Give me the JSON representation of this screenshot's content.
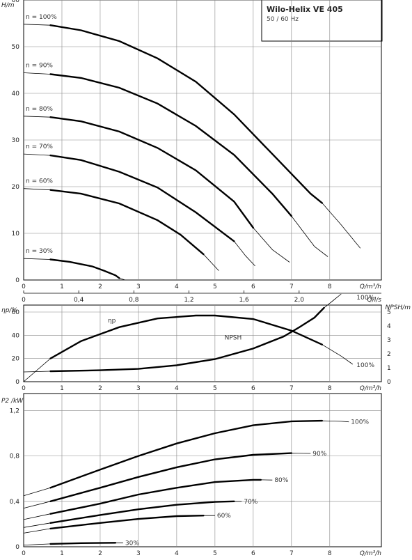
{
  "header": {
    "title": "Wilo-Helix VE 405",
    "subtitle": "50 / 60 Hz"
  },
  "chart_data": [
    {
      "type": "line",
      "panel": "head",
      "ylabel": "H/m",
      "xlabel": "Q/m³/h",
      "xlabel2": "Q/l/s",
      "x_ticks": [
        "0",
        "1",
        "2",
        "3",
        "4",
        "5",
        "6",
        "7",
        "8"
      ],
      "y_ticks": [
        "0",
        "10",
        "20",
        "30",
        "40",
        "50",
        "60"
      ],
      "x2_ticks": [
        "0",
        "0,4",
        "0,8",
        "1,2",
        "1,6",
        "2,0"
      ],
      "xlim": [
        0,
        9.35
      ],
      "ylim": [
        0,
        60
      ],
      "grid": true,
      "series": [
        {
          "name": "n = 100%",
          "x": [
            0,
            0.7,
            1.5,
            2.5,
            3.5,
            4.5,
            5.5,
            6.5,
            7.5,
            7.8,
            8.3,
            8.8
          ],
          "y": [
            54.8,
            54.6,
            53.5,
            51.2,
            47.5,
            42.5,
            35.5,
            27.0,
            18.5,
            16.5,
            11.8,
            6.8
          ]
        },
        {
          "name": "n = 90%",
          "x": [
            0,
            0.7,
            1.5,
            2.5,
            3.5,
            4.5,
            5.5,
            6.5,
            7.0,
            7.6,
            7.95
          ],
          "y": [
            44.4,
            44.1,
            43.3,
            41.2,
            37.8,
            33.0,
            26.8,
            18.5,
            13.7,
            7.2,
            5.0
          ]
        },
        {
          "name": "n = 80%",
          "x": [
            0,
            0.7,
            1.5,
            2.5,
            3.5,
            4.5,
            5.5,
            6.0,
            6.5,
            6.95
          ],
          "y": [
            35.1,
            34.9,
            34.0,
            31.8,
            28.3,
            23.5,
            16.8,
            11.2,
            6.5,
            3.8
          ]
        },
        {
          "name": "n = 70%",
          "x": [
            0,
            0.7,
            1.5,
            2.5,
            3.5,
            4.5,
            5.5,
            5.8,
            6.05
          ],
          "y": [
            27.0,
            26.7,
            25.7,
            23.2,
            19.8,
            14.5,
            8.3,
            5.2,
            3.0
          ]
        },
        {
          "name": "n = 60%",
          "x": [
            0,
            0.7,
            1.5,
            2.5,
            3.5,
            4.1,
            4.7,
            5.1
          ],
          "y": [
            19.6,
            19.3,
            18.5,
            16.4,
            12.8,
            9.7,
            5.5,
            2.0
          ]
        },
        {
          "name": "n = 30%",
          "x": [
            0,
            0.7,
            1.2,
            1.8,
            2.1,
            2.4,
            2.5,
            2.65
          ],
          "y": [
            4.6,
            4.4,
            3.9,
            2.9,
            2.0,
            1.0,
            0.4,
            0.0
          ]
        }
      ]
    },
    {
      "type": "line",
      "panel": "efficiency_npsh",
      "ylabel": "ηp/%",
      "ylabel_right": "NPSH/m",
      "xlabel": "Q/m³/h",
      "x_ticks": [
        "0",
        "1",
        "2",
        "3",
        "4",
        "5",
        "6",
        "7",
        "8"
      ],
      "y_ticks": [
        "0",
        "20",
        "40",
        "60"
      ],
      "y_right_ticks": [
        "0",
        "1",
        "2",
        "3",
        "4",
        "5"
      ],
      "xlim": [
        0,
        9.35
      ],
      "ylim": [
        0,
        66
      ],
      "ylim_right": [
        0,
        5.5
      ],
      "grid": true,
      "series": [
        {
          "name": "ηp",
          "label_100": "100%",
          "axis": "left",
          "x": [
            0,
            0.7,
            1.5,
            2.5,
            3.5,
            4.5,
            5.0,
            6.0,
            7.0,
            7.8,
            8.3,
            8.6
          ],
          "y": [
            0,
            20,
            35,
            47,
            54.5,
            57,
            57,
            54,
            44,
            32,
            22,
            15
          ]
        },
        {
          "name": "NPSH",
          "label_100": "100%",
          "axis": "right",
          "x": [
            0,
            0.7,
            2,
            3,
            4,
            5,
            6,
            6.8,
            7.2,
            7.6,
            7.85,
            8.1,
            8.3
          ],
          "y": [
            0.7,
            0.75,
            0.82,
            0.92,
            1.18,
            1.62,
            2.38,
            3.25,
            3.9,
            4.6,
            5.3,
            5.85,
            6.3
          ]
        }
      ]
    },
    {
      "type": "line",
      "panel": "power",
      "ylabel": "P2 /kW",
      "xlabel": "Q/m³/h",
      "x_ticks": [
        "0",
        "1",
        "2",
        "3",
        "4",
        "5",
        "6",
        "7",
        "8"
      ],
      "y_ticks": [
        "0",
        "0,4",
        "0,8",
        "1,2"
      ],
      "xlim": [
        0,
        9.35
      ],
      "ylim": [
        0,
        1.35
      ],
      "grid": true,
      "series": [
        {
          "name": "100%",
          "x": [
            0,
            0.7,
            2,
            3,
            4,
            5,
            6,
            7,
            7.8,
            8.3,
            8.5
          ],
          "y": [
            0.45,
            0.52,
            0.68,
            0.8,
            0.91,
            1.0,
            1.07,
            1.105,
            1.11,
            1.105,
            1.1
          ]
        },
        {
          "name": "90%",
          "x": [
            0,
            0.7,
            2,
            3,
            4,
            5,
            6,
            7,
            7.5
          ],
          "y": [
            0.34,
            0.4,
            0.52,
            0.615,
            0.7,
            0.77,
            0.81,
            0.825,
            0.822
          ]
        },
        {
          "name": "80%",
          "x": [
            0,
            0.7,
            2,
            3,
            4,
            5,
            6,
            6.2,
            6.5
          ],
          "y": [
            0.24,
            0.29,
            0.38,
            0.46,
            0.52,
            0.57,
            0.59,
            0.59,
            0.588
          ]
        },
        {
          "name": "70%",
          "x": [
            0,
            0.7,
            2,
            3,
            4,
            5,
            5.5,
            5.7
          ],
          "y": [
            0.17,
            0.21,
            0.28,
            0.33,
            0.37,
            0.395,
            0.4,
            0.4
          ]
        },
        {
          "name": "60%",
          "x": [
            0,
            0.7,
            2,
            3,
            4,
            4.7,
            5.0
          ],
          "y": [
            0.12,
            0.16,
            0.21,
            0.245,
            0.27,
            0.275,
            0.275
          ]
        },
        {
          "name": "30%",
          "x": [
            0,
            0.7,
            1.5,
            2.4,
            2.6
          ],
          "y": [
            0.015,
            0.025,
            0.032,
            0.035,
            0.035
          ]
        }
      ]
    }
  ]
}
